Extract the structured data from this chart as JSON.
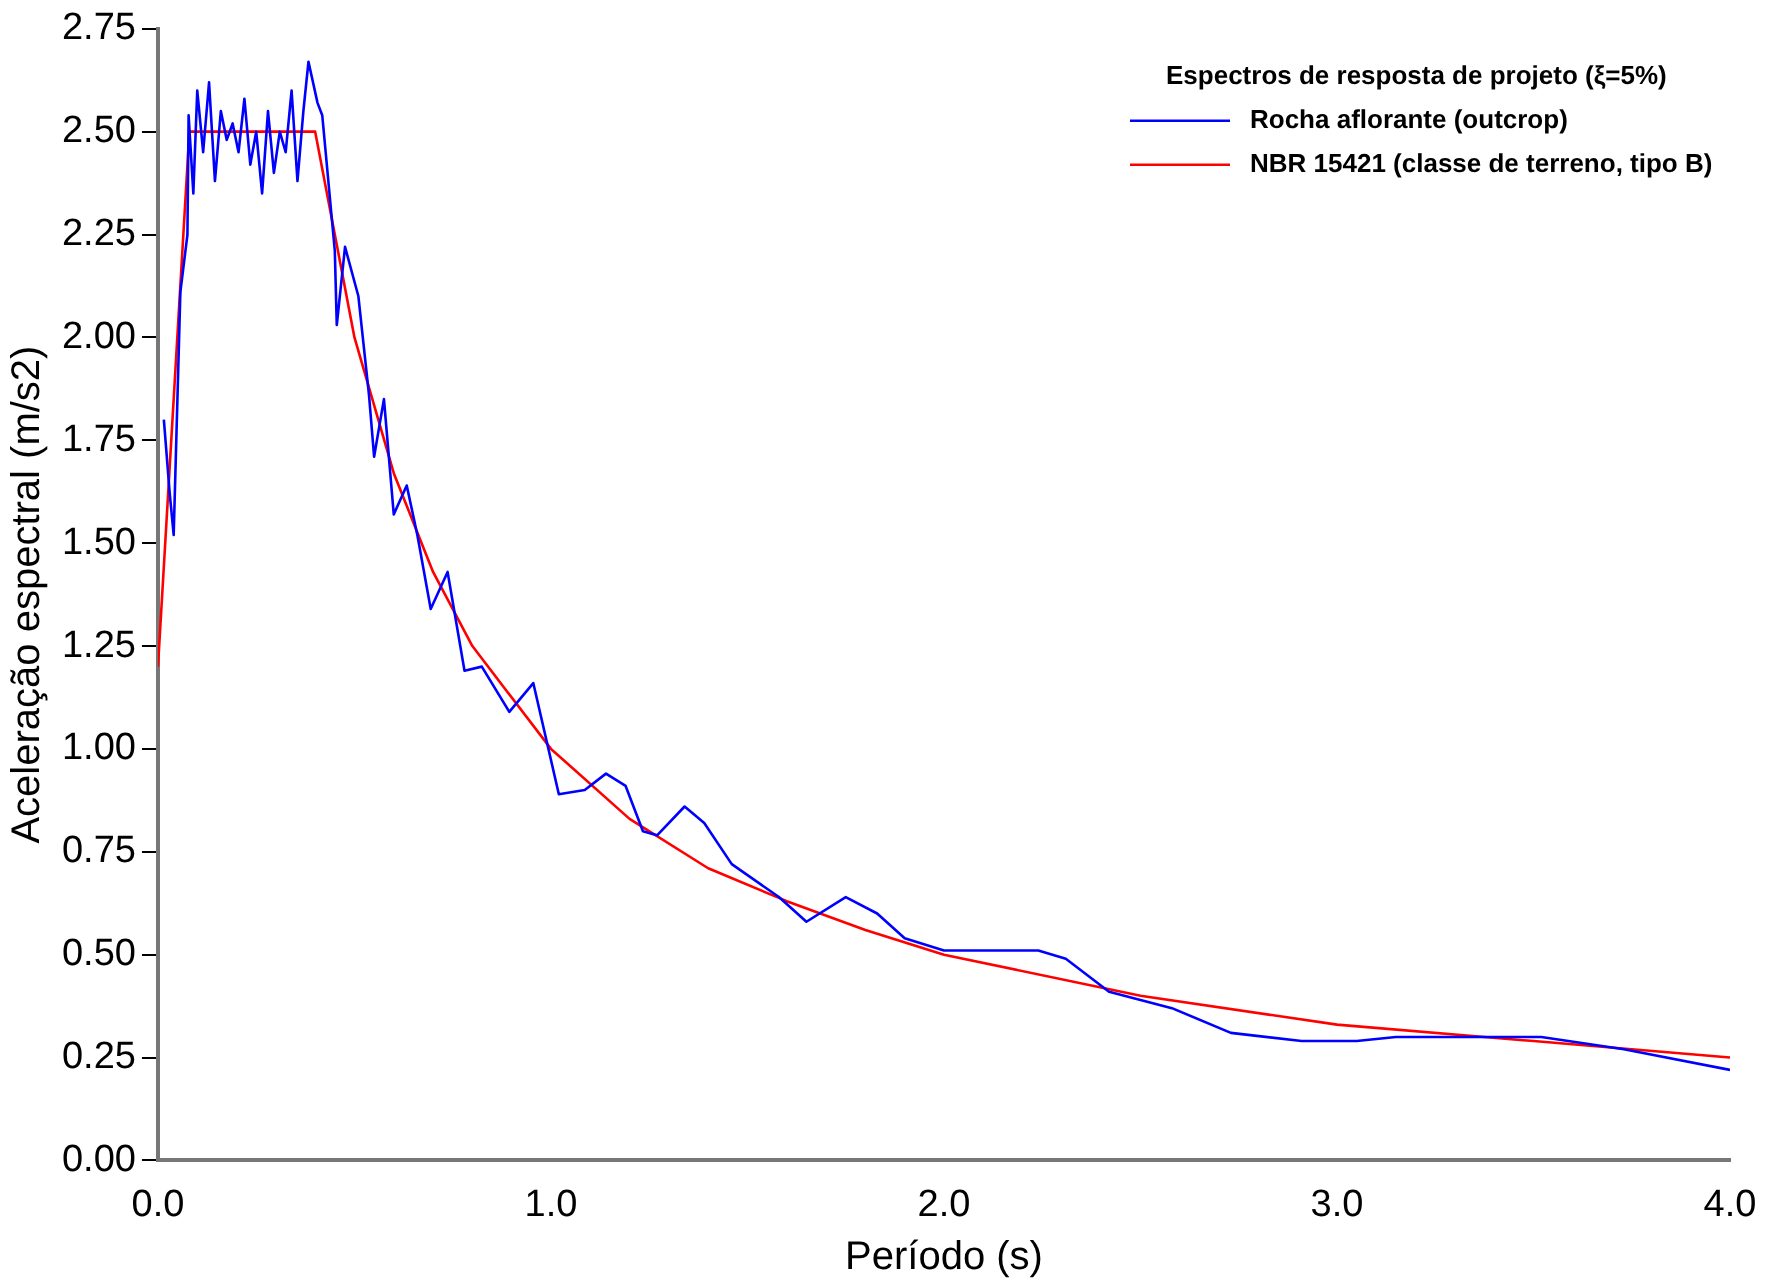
{
  "chart_data": {
    "type": "line",
    "xlabel": "Período (s)",
    "ylabel": "Aceleração espectral (m/s2)",
    "legend_title": "Espectros de resposta de projeto (ξ=5%)",
    "legend": "top right",
    "grid": false,
    "marker": "none",
    "line_style": "solid",
    "xlim": [
      0,
      4
    ],
    "xticks": [
      {
        "value": 0,
        "label": "0.0"
      },
      {
        "value": 1,
        "label": "1.0"
      },
      {
        "value": 2,
        "label": "2.0"
      },
      {
        "value": 3,
        "label": "3.0"
      },
      {
        "value": 4,
        "label": "4.0"
      }
    ],
    "ylim": [
      0,
      2.75
    ],
    "yticks": [
      {
        "value": 0,
        "label": "0.00"
      },
      {
        "value": 0.25,
        "label": "0.25"
      },
      {
        "value": 0.5,
        "label": "0.50"
      },
      {
        "value": 0.75,
        "label": "0.75"
      },
      {
        "value": 1,
        "label": "1.00"
      },
      {
        "value": 1.25,
        "label": "1.25"
      },
      {
        "value": 1.5,
        "label": "1.50"
      },
      {
        "value": 1.75,
        "label": "1.75"
      },
      {
        "value": 2,
        "label": "2.00"
      },
      {
        "value": 2.25,
        "label": "2.25"
      },
      {
        "value": 2.5,
        "label": "2.50"
      },
      {
        "value": 2.75,
        "label": "2.75"
      }
    ],
    "series": [
      {
        "name": "Rocha aflorante (outcrop)",
        "color": "#0000ff",
        "x": [
          0.015,
          0.03,
          0.04,
          0.057,
          0.075,
          0.078,
          0.09,
          0.1,
          0.115,
          0.13,
          0.145,
          0.16,
          0.175,
          0.19,
          0.205,
          0.22,
          0.235,
          0.25,
          0.265,
          0.28,
          0.295,
          0.31,
          0.325,
          0.34,
          0.355,
          0.37,
          0.383,
          0.406,
          0.418,
          0.45,
          0.455,
          0.476,
          0.51,
          0.537,
          0.55,
          0.575,
          0.6,
          0.633,
          0.66,
          0.694,
          0.737,
          0.78,
          0.824,
          0.894,
          0.955,
          1.02,
          1.086,
          1.14,
          1.19,
          1.234,
          1.27,
          1.34,
          1.39,
          1.46,
          1.58,
          1.65,
          1.75,
          1.83,
          1.9,
          2.0,
          2.1,
          2.24,
          2.31,
          2.42,
          2.58,
          2.73,
          2.91,
          3.05,
          3.15,
          3.52,
          3.73,
          4.0
        ],
        "values": [
          1.8,
          1.62,
          1.52,
          2.11,
          2.25,
          2.54,
          2.35,
          2.6,
          2.45,
          2.62,
          2.38,
          2.55,
          2.48,
          2.52,
          2.45,
          2.58,
          2.42,
          2.5,
          2.35,
          2.55,
          2.4,
          2.5,
          2.45,
          2.6,
          2.38,
          2.55,
          2.67,
          2.57,
          2.54,
          2.21,
          2.03,
          2.22,
          2.1,
          1.86,
          1.71,
          1.85,
          1.57,
          1.64,
          1.52,
          1.34,
          1.43,
          1.19,
          1.2,
          1.09,
          1.16,
          0.89,
          0.9,
          0.94,
          0.91,
          0.8,
          0.79,
          0.86,
          0.82,
          0.72,
          0.64,
          0.58,
          0.64,
          0.6,
          0.54,
          0.51,
          0.51,
          0.51,
          0.49,
          0.41,
          0.37,
          0.31,
          0.29,
          0.29,
          0.3,
          0.3,
          0.27,
          0.22
        ]
      },
      {
        "name": "NBR 15421 (classe de terreno, tipo B)",
        "color": "#ff0000",
        "x": [
          0,
          0.08,
          0.4,
          0.5,
          0.6,
          0.7,
          0.8,
          1.0,
          1.2,
          1.4,
          1.6,
          1.8,
          2.0,
          2.5,
          3.0,
          3.5,
          4.0
        ],
        "values": [
          1.2,
          2.5,
          2.5,
          2.0,
          1.67,
          1.43,
          1.25,
          1.0,
          0.83,
          0.71,
          0.63,
          0.56,
          0.5,
          0.4,
          0.33,
          0.29,
          0.25
        ]
      }
    ]
  }
}
